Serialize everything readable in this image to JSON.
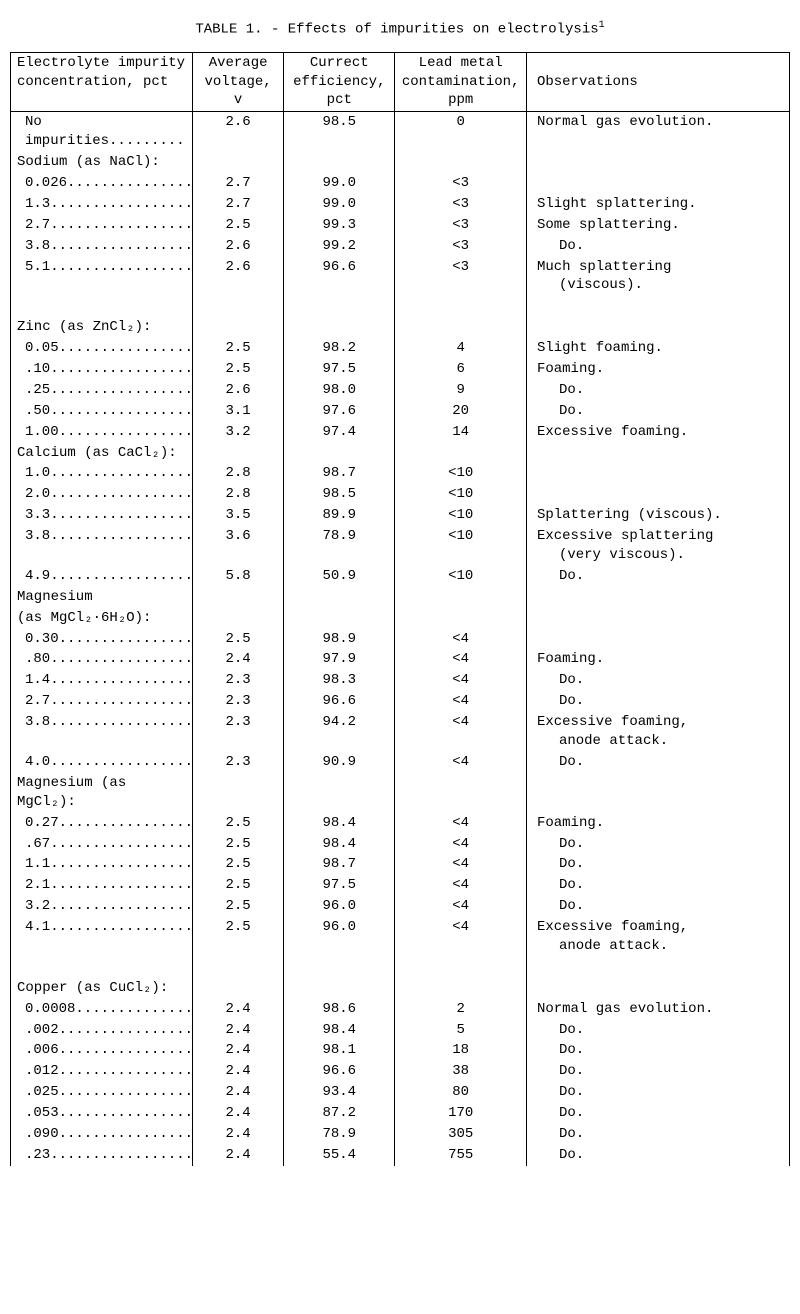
{
  "title_prefix": "TABLE 1. - ",
  "title_text": "Effects of impurities on electrolysis",
  "title_sup": "1",
  "columns": {
    "impurity_l1": "Electrolyte impurity",
    "impurity_l2": "concentration, pct",
    "voltage_l1": "Average",
    "voltage_l2": "voltage,",
    "voltage_l3": "v",
    "eff_l1": "Currect",
    "eff_l2": "efficiency,",
    "eff_l3": "pct",
    "ppm_l1": "Lead metal",
    "ppm_l2": "contamination,",
    "ppm_l3": "ppm",
    "obs": "Observations"
  },
  "rows": [
    {
      "type": "data",
      "imp": "No impurities.........",
      "v": "2.6",
      "eff": "98.5",
      "ppm": "0",
      "obs": "Normal gas evolution."
    },
    {
      "type": "group",
      "imp": "Sodium (as NaCl):"
    },
    {
      "type": "data",
      "imp": "0.026...............",
      "v": "2.7",
      "eff": "99.0",
      "ppm": "<3",
      "obs": ""
    },
    {
      "type": "data",
      "imp": "1.3.................",
      "v": "2.7",
      "eff": "99.0",
      "ppm": "<3",
      "obs": "Slight splattering."
    },
    {
      "type": "data",
      "imp": "2.7.................",
      "v": "2.5",
      "eff": "99.3",
      "ppm": "<3",
      "obs": "Some splattering."
    },
    {
      "type": "data",
      "imp": "3.8.................",
      "v": "2.6",
      "eff": "99.2",
      "ppm": "<3",
      "obs_do": "Do."
    },
    {
      "type": "data",
      "imp": "5.1.................",
      "v": "2.6",
      "eff": "96.6",
      "ppm": "<3",
      "obs": "Much splattering",
      "obs2": "(viscous)."
    },
    {
      "type": "blank"
    },
    {
      "type": "group",
      "imp": "Zinc (as ZnCl₂):"
    },
    {
      "type": "data",
      "imp": "0.05................",
      "v": "2.5",
      "eff": "98.2",
      "ppm": "4",
      "obs": "Slight foaming."
    },
    {
      "type": "data",
      "imp": ".10.................",
      "v": "2.5",
      "eff": "97.5",
      "ppm": "6",
      "obs": "Foaming."
    },
    {
      "type": "data",
      "imp": ".25.................",
      "v": "2.6",
      "eff": "98.0",
      "ppm": "9",
      "obs_do": "Do."
    },
    {
      "type": "data",
      "imp": ".50.................",
      "v": "3.1",
      "eff": "97.6",
      "ppm": "20",
      "obs_do": "Do."
    },
    {
      "type": "data",
      "imp": "1.00................",
      "v": "3.2",
      "eff": "97.4",
      "ppm": "14",
      "obs": "Excessive foaming."
    },
    {
      "type": "group",
      "imp": "Calcium (as CaCl₂):"
    },
    {
      "type": "data",
      "imp": "1.0.................",
      "v": "2.8",
      "eff": "98.7",
      "ppm": "<10",
      "obs": ""
    },
    {
      "type": "data",
      "imp": "2.0.................",
      "v": "2.8",
      "eff": "98.5",
      "ppm": "<10",
      "obs": ""
    },
    {
      "type": "data",
      "imp": "3.3.................",
      "v": "3.5",
      "eff": "89.9",
      "ppm": "<10",
      "obs": "Splattering (viscous)."
    },
    {
      "type": "data",
      "imp": "3.8.................",
      "v": "3.6",
      "eff": "78.9",
      "ppm": "<10",
      "obs": "Excessive splattering",
      "obs2": "(very viscous)."
    },
    {
      "type": "data",
      "imp": "4.9.................",
      "v": "5.8",
      "eff": "50.9",
      "ppm": "<10",
      "obs_do": "Do."
    },
    {
      "type": "group",
      "imp": "Magnesium"
    },
    {
      "type": "group",
      "imp": " (as MgCl₂·6H₂O):"
    },
    {
      "type": "data",
      "imp": "0.30................",
      "v": "2.5",
      "eff": "98.9",
      "ppm": "<4",
      "obs": ""
    },
    {
      "type": "data",
      "imp": ".80.................",
      "v": "2.4",
      "eff": "97.9",
      "ppm": "<4",
      "obs": "Foaming."
    },
    {
      "type": "data",
      "imp": "1.4.................",
      "v": "2.3",
      "eff": "98.3",
      "ppm": "<4",
      "obs_do": "Do."
    },
    {
      "type": "data",
      "imp": "2.7.................",
      "v": "2.3",
      "eff": "96.6",
      "ppm": "<4",
      "obs_do": "Do."
    },
    {
      "type": "data",
      "imp": "3.8.................",
      "v": "2.3",
      "eff": "94.2",
      "ppm": "<4",
      "obs": "Excessive foaming,",
      "obs2": "anode attack."
    },
    {
      "type": "data",
      "imp": "4.0.................",
      "v": "2.3",
      "eff": "90.9",
      "ppm": "<4",
      "obs_do": "Do."
    },
    {
      "type": "group",
      "imp": "Magnesium (as MgCl₂):"
    },
    {
      "type": "data",
      "imp": "0.27................",
      "v": "2.5",
      "eff": "98.4",
      "ppm": "<4",
      "obs": "Foaming."
    },
    {
      "type": "data",
      "imp": ".67.................",
      "v": "2.5",
      "eff": "98.4",
      "ppm": "<4",
      "obs_do": "Do."
    },
    {
      "type": "data",
      "imp": "1.1.................",
      "v": "2.5",
      "eff": "98.7",
      "ppm": "<4",
      "obs_do": "Do."
    },
    {
      "type": "data",
      "imp": "2.1.................",
      "v": "2.5",
      "eff": "97.5",
      "ppm": "<4",
      "obs_do": "Do."
    },
    {
      "type": "data",
      "imp": "3.2.................",
      "v": "2.5",
      "eff": "96.0",
      "ppm": "<4",
      "obs_do": "Do."
    },
    {
      "type": "data",
      "imp": "4.1.................",
      "v": "2.5",
      "eff": "96.0",
      "ppm": "<4",
      "obs": "Excessive foaming,",
      "obs2": "anode attack."
    },
    {
      "type": "blank"
    },
    {
      "type": "group",
      "imp": "Copper (as CuCl₂):"
    },
    {
      "type": "data",
      "imp": "0.0008..............",
      "v": "2.4",
      "eff": "98.6",
      "ppm": "2",
      "obs": "Normal gas evolution."
    },
    {
      "type": "data",
      "imp": ".002................",
      "v": "2.4",
      "eff": "98.4",
      "ppm": "5",
      "obs_do": "Do."
    },
    {
      "type": "data",
      "imp": ".006................",
      "v": "2.4",
      "eff": "98.1",
      "ppm": "18",
      "obs_do": "Do."
    },
    {
      "type": "data",
      "imp": ".012................",
      "v": "2.4",
      "eff": "96.6",
      "ppm": "38",
      "obs_do": "Do."
    },
    {
      "type": "data",
      "imp": ".025................",
      "v": "2.4",
      "eff": "93.4",
      "ppm": "80",
      "obs_do": "Do."
    },
    {
      "type": "data",
      "imp": ".053................",
      "v": "2.4",
      "eff": "87.2",
      "ppm": "170",
      "obs_do": "Do."
    },
    {
      "type": "data",
      "imp": ".090................",
      "v": "2.4",
      "eff": "78.9",
      "ppm": "305",
      "obs_do": "Do."
    },
    {
      "type": "data",
      "imp": ".23.................",
      "v": "2.4",
      "eff": "55.4",
      "ppm": "755",
      "obs_do": "Do."
    }
  ]
}
